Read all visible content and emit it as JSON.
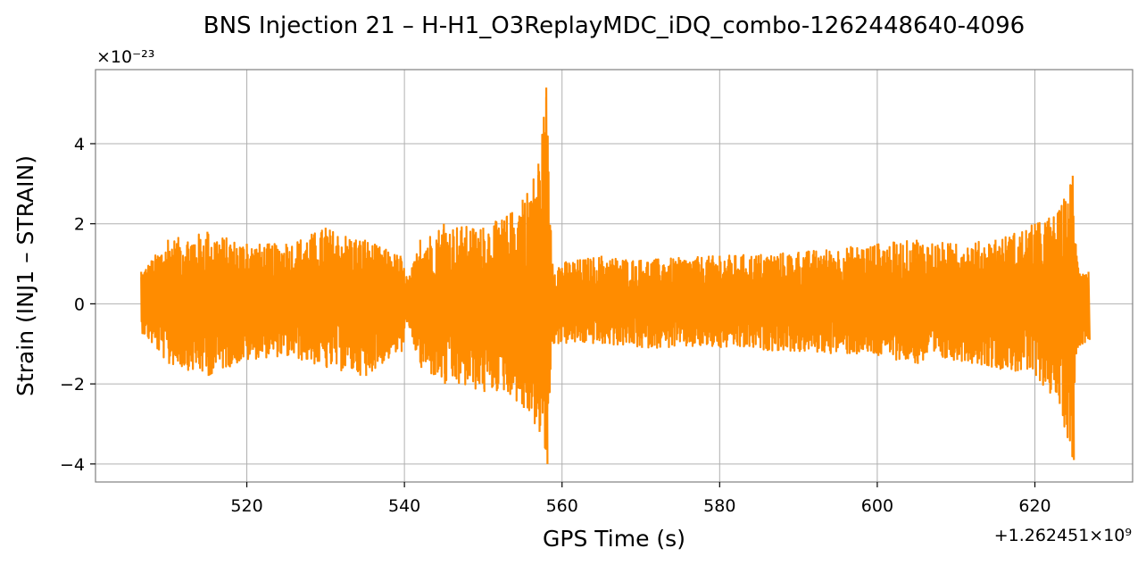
{
  "chart_data": {
    "type": "line",
    "title": "BNS Injection 21 – H-H1_O3ReplayMDC_iDQ_combo-1262448640-4096",
    "xlabel": "GPS Time (s)",
    "ylabel": "Strain (INJ1 – STRAIN)",
    "x_offset_text": "+1.262451×10⁹",
    "y_scale_text": "×10⁻²³",
    "x_ticks": [
      520,
      540,
      560,
      580,
      600,
      620
    ],
    "x_tick_labels": [
      "520",
      "540",
      "560",
      "580",
      "600",
      "620"
    ],
    "y_ticks": [
      -4,
      -2,
      0,
      2,
      4
    ],
    "y_tick_labels": [
      "−4",
      "−2",
      "0",
      "2",
      "4"
    ],
    "xlim": [
      500.8,
      632.4
    ],
    "ylim": [
      -4.45,
      5.85
    ],
    "grid": true,
    "series": [
      {
        "color": "#ff8c00",
        "x_range": [
          506.6,
          626.8
        ],
        "envelope": [
          {
            "x": 506.6,
            "max": 0.8,
            "min": -0.7
          },
          {
            "x": 510,
            "max": 1.6,
            "min": -1.5
          },
          {
            "x": 515,
            "max": 1.8,
            "min": -1.8
          },
          {
            "x": 520,
            "max": 1.5,
            "min": -1.4
          },
          {
            "x": 525,
            "max": 1.5,
            "min": -1.3
          },
          {
            "x": 530,
            "max": 1.9,
            "min": -1.6
          },
          {
            "x": 535,
            "max": 1.6,
            "min": -1.8
          },
          {
            "x": 539.5,
            "max": 1.2,
            "min": -1.2
          },
          {
            "x": 540.5,
            "max": 0.6,
            "min": -0.6
          },
          {
            "x": 542,
            "max": 1.6,
            "min": -1.6
          },
          {
            "x": 545,
            "max": 2.0,
            "min": -2.0
          },
          {
            "x": 550,
            "max": 1.9,
            "min": -2.2
          },
          {
            "x": 553,
            "max": 2.2,
            "min": -2.2
          },
          {
            "x": 555,
            "max": 2.6,
            "min": -2.6
          },
          {
            "x": 557,
            "max": 3.5,
            "min": -3.2
          },
          {
            "x": 558,
            "max": 5.4,
            "min": -4.0
          },
          {
            "x": 558.8,
            "max": 1.0,
            "min": -1.0
          },
          {
            "x": 565,
            "max": 1.2,
            "min": -1.0
          },
          {
            "x": 570,
            "max": 1.1,
            "min": -1.1
          },
          {
            "x": 580,
            "max": 1.2,
            "min": -1.1
          },
          {
            "x": 590,
            "max": 1.3,
            "min": -1.2
          },
          {
            "x": 600,
            "max": 1.5,
            "min": -1.3
          },
          {
            "x": 605,
            "max": 1.6,
            "min": -1.5
          },
          {
            "x": 610,
            "max": 1.5,
            "min": -1.4
          },
          {
            "x": 615,
            "max": 1.6,
            "min": -1.6
          },
          {
            "x": 620,
            "max": 2.0,
            "min": -1.8
          },
          {
            "x": 623,
            "max": 2.3,
            "min": -2.5
          },
          {
            "x": 624.8,
            "max": 3.2,
            "min": -3.9
          },
          {
            "x": 625.3,
            "max": 1.2,
            "min": -1.1
          },
          {
            "x": 626.8,
            "max": 0.8,
            "min": -0.9
          }
        ]
      }
    ]
  }
}
